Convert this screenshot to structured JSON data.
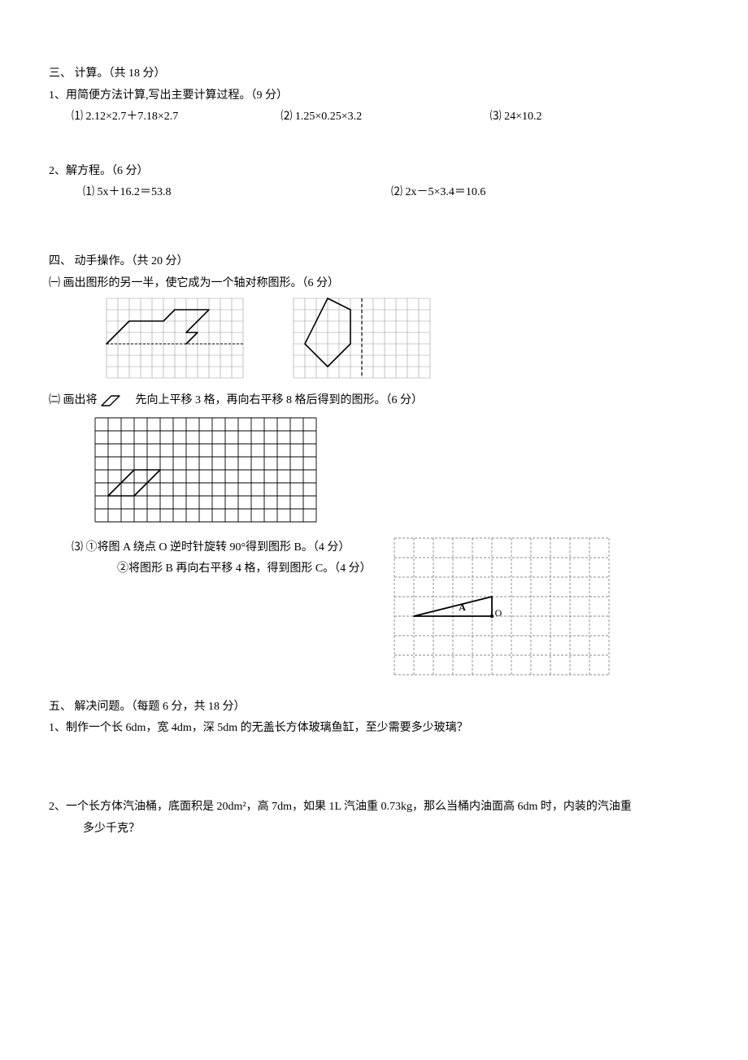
{
  "s3": {
    "title": "三、  计算。（共 18 分）",
    "q1": {
      "stem": "1、用简便方法计算,写出主要计算过程。（9 分）",
      "items": [
        "⑴ 2.12×2.7＋7.18×2.7",
        "⑵ 1.25×0.25×3.2",
        "⑶ 24×10.2"
      ]
    },
    "q2": {
      "stem": "2、解方程。（6 分）",
      "items": [
        "⑴ 5x＋16.2＝53.8",
        "⑵ 2x－5×3.4＝10.6"
      ]
    }
  },
  "s4": {
    "title": "四、  动手操作。（共 20 分）",
    "p1": {
      "stem": "㈠ 画出图形的另一半，使它成为一个轴对称图形。（6 分）",
      "gridA": {
        "cols": 12,
        "rows": 7,
        "cell": 14,
        "grid_color": "#9a9a9a",
        "stroke": "#000000",
        "sw": 1.6,
        "axis_row": 4,
        "poly_points": [
          [
            0,
            4
          ],
          [
            2,
            2
          ],
          [
            5,
            2
          ],
          [
            6,
            1
          ],
          [
            9,
            1
          ],
          [
            7,
            3
          ],
          [
            8,
            3
          ],
          [
            7,
            4
          ]
        ]
      },
      "gridB": {
        "cols": 12,
        "rows": 7,
        "cell": 14,
        "grid_color": "#9a9a9a",
        "stroke": "#000000",
        "sw": 1.6,
        "axis_col": 6,
        "poly_points": [
          [
            3,
            0
          ],
          [
            5,
            1
          ],
          [
            5,
            4
          ],
          [
            3,
            6
          ],
          [
            1,
            4
          ]
        ]
      }
    },
    "p2": {
      "stem_pre": "㈡  画出将 ",
      "stem_post": " 先向上平移 3 格，再向右平移 8 格后得到的图形。（6 分）",
      "mini": {
        "w": 40,
        "h": 16,
        "stroke": "#000000",
        "sw": 1.4,
        "pts": [
          [
            2,
            14
          ],
          [
            14,
            2
          ],
          [
            24,
            2
          ],
          [
            12,
            14
          ],
          [
            2,
            14
          ]
        ]
      },
      "grid": {
        "cols": 17,
        "rows": 8,
        "cell": 16,
        "grid_color": "#000000",
        "stroke": "#000000",
        "sw": 1.6,
        "shape_pts": [
          [
            1,
            6
          ],
          [
            3,
            4
          ],
          [
            5,
            4
          ],
          [
            3,
            6
          ],
          [
            1,
            6
          ]
        ]
      }
    },
    "p3": {
      "l1": "⑶ ①将图 A 绕点 O 逆时针旋转 90°得到图形 B。（4 分）",
      "l2": "②将图形 B 再向右平移 4 格，得到图形 C。（4 分）",
      "grid": {
        "cols": 11,
        "rows": 7,
        "cell": 24,
        "grid_color": "#666666",
        "stroke": "#000000",
        "sw": 1.8,
        "tri_pts": [
          [
            1,
            4
          ],
          [
            5,
            3
          ],
          [
            5,
            4
          ]
        ],
        "labelA": "A",
        "labelO": "O",
        "A_pos": [
          3.3,
          3.7
        ],
        "O_pos": [
          5.15,
          4.0
        ],
        "label_fontsize": 12
      }
    }
  },
  "s5": {
    "title": "五、  解决问题。（每题 6 分，共 18 分）",
    "q1": "1、制作一个长 6dm，宽 4dm，深 5dm 的无盖长方体玻璃鱼缸，至少需要多少玻璃？",
    "q2a": "2、一个长方体汽油桶，底面积是 20dm²，高 7dm，如果 1L 汽油重 0.73kg，那么当桶内油面高 6dm 时，内装的汽油重",
    "q2b": "多少千克？"
  },
  "colors": {
    "text": "#000000",
    "bg": "#ffffff"
  }
}
